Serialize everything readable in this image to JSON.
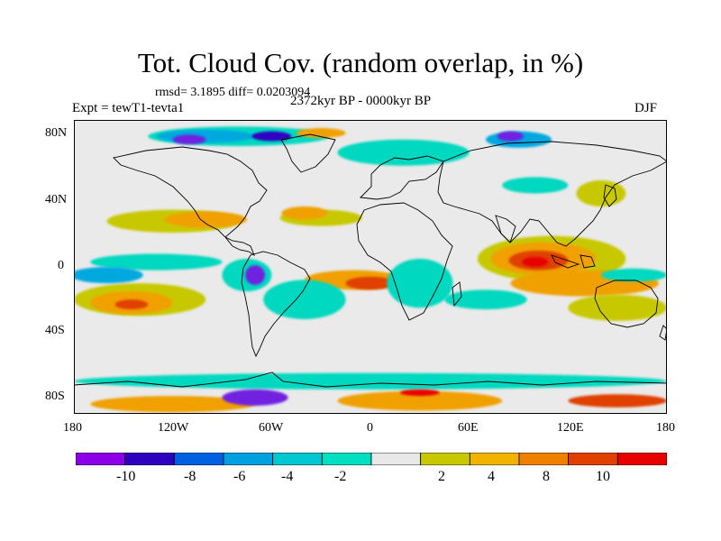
{
  "title": "Tot. Cloud Cov. (random overlap, in %)",
  "stats": "rmsd= 3.1895 diff= 0.0203094",
  "experiment": "Expt = tewT1-tevta1",
  "period": "2372kyr BP - 0000kyr BP",
  "season": "DJF",
  "map": {
    "projection": "cylindrical-equidistant",
    "lon_range": [
      -180,
      180
    ],
    "lat_range": [
      -90,
      90
    ],
    "y_ticks": [
      {
        "label": "80N",
        "value": 80
      },
      {
        "label": "40N",
        "value": 40
      },
      {
        "label": "0",
        "value": 0
      },
      {
        "label": "40S",
        "value": -40
      },
      {
        "label": "80S",
        "value": -80
      }
    ],
    "x_ticks": [
      {
        "label": "180",
        "value": -180
      },
      {
        "label": "120W",
        "value": -120
      },
      {
        "label": "60W",
        "value": -60
      },
      {
        "label": "0",
        "value": 0
      },
      {
        "label": "60E",
        "value": 60
      },
      {
        "label": "120E",
        "value": 120
      },
      {
        "label": "180",
        "value": 180
      }
    ],
    "background_color": "#eaeaea",
    "coastline_color": "#000000",
    "anomaly_regions": [
      {
        "lon": -120,
        "lat": 28,
        "rx": 40,
        "ry": 7,
        "color": "#c8c800"
      },
      {
        "lon": -100,
        "lat": 29,
        "rx": 25,
        "ry": 5,
        "color": "#f0a000"
      },
      {
        "lon": -30,
        "lat": 30,
        "rx": 25,
        "ry": 5,
        "color": "#c8c800"
      },
      {
        "lon": -40,
        "lat": 33,
        "rx": 14,
        "ry": 4,
        "color": "#f0a000"
      },
      {
        "lon": 110,
        "lat": 5,
        "rx": 45,
        "ry": 14,
        "color": "#c8c800"
      },
      {
        "lon": 105,
        "lat": 5,
        "rx": 32,
        "ry": 10,
        "color": "#f0a000"
      },
      {
        "lon": 102,
        "lat": 4,
        "rx": 18,
        "ry": 6,
        "color": "#e04000"
      },
      {
        "lon": 100,
        "lat": 3,
        "rx": 8,
        "ry": 3,
        "color": "#e80000"
      },
      {
        "lon": 130,
        "lat": -10,
        "rx": 45,
        "ry": 8,
        "color": "#f0a000"
      },
      {
        "lon": 150,
        "lat": -25,
        "rx": 30,
        "ry": 8,
        "color": "#c8c800"
      },
      {
        "lon": -140,
        "lat": -20,
        "rx": 40,
        "ry": 10,
        "color": "#c8c800"
      },
      {
        "lon": -145,
        "lat": -22,
        "rx": 25,
        "ry": 7,
        "color": "#f0a000"
      },
      {
        "lon": -145,
        "lat": -23,
        "rx": 10,
        "ry": 3,
        "color": "#e04000"
      },
      {
        "lon": -10,
        "lat": -8,
        "rx": 30,
        "ry": 6,
        "color": "#f0a000"
      },
      {
        "lon": 0,
        "lat": -10,
        "rx": 15,
        "ry": 4,
        "color": "#e04000"
      },
      {
        "lon": -130,
        "lat": 3,
        "rx": 40,
        "ry": 5,
        "color": "#00d8c0"
      },
      {
        "lon": -160,
        "lat": -5,
        "rx": 22,
        "ry": 5,
        "color": "#00a8e0"
      },
      {
        "lon": -75,
        "lat": -5,
        "rx": 15,
        "ry": 10,
        "color": "#00d8c0"
      },
      {
        "lon": -70,
        "lat": -5,
        "rx": 6,
        "ry": 6,
        "color": "#7020e0"
      },
      {
        "lon": -40,
        "lat": -20,
        "rx": 25,
        "ry": 12,
        "color": "#00d8c0"
      },
      {
        "lon": 30,
        "lat": -10,
        "rx": 20,
        "ry": 15,
        "color": "#00d8c0"
      },
      {
        "lon": 70,
        "lat": -20,
        "rx": 25,
        "ry": 6,
        "color": "#00d8c0"
      },
      {
        "lon": 160,
        "lat": -5,
        "rx": 20,
        "ry": 4,
        "color": "#00d8c0"
      },
      {
        "lon": 100,
        "lat": 50,
        "rx": 20,
        "ry": 5,
        "color": "#00d8c0"
      },
      {
        "lon": 20,
        "lat": 70,
        "rx": 40,
        "ry": 8,
        "color": "#00d8c0"
      },
      {
        "lon": -80,
        "lat": 80,
        "rx": 55,
        "ry": 6,
        "color": "#00d8c0"
      },
      {
        "lon": -100,
        "lat": 80,
        "rx": 30,
        "ry": 4,
        "color": "#00a8e0"
      },
      {
        "lon": -110,
        "lat": 78,
        "rx": 10,
        "ry": 3,
        "color": "#7020e0"
      },
      {
        "lon": -60,
        "lat": 80,
        "rx": 12,
        "ry": 3,
        "color": "#3000c0"
      },
      {
        "lon": 90,
        "lat": 78,
        "rx": 20,
        "ry": 5,
        "color": "#00a8e0"
      },
      {
        "lon": 85,
        "lat": 80,
        "rx": 8,
        "ry": 3,
        "color": "#7020e0"
      },
      {
        "lon": -30,
        "lat": 82,
        "rx": 15,
        "ry": 3,
        "color": "#f0a000"
      },
      {
        "lon": 140,
        "lat": 45,
        "rx": 15,
        "ry": 8,
        "color": "#c8c800"
      },
      {
        "lon": 0,
        "lat": -70,
        "rx": 180,
        "ry": 5,
        "color": "#00d8c0"
      },
      {
        "lon": -120,
        "lat": -84,
        "rx": 50,
        "ry": 5,
        "color": "#f0a000"
      },
      {
        "lon": 30,
        "lat": -82,
        "rx": 50,
        "ry": 6,
        "color": "#f0a000"
      },
      {
        "lon": -70,
        "lat": -80,
        "rx": 20,
        "ry": 5,
        "color": "#7020e0"
      },
      {
        "lon": 150,
        "lat": -82,
        "rx": 30,
        "ry": 4,
        "color": "#e04000"
      },
      {
        "lon": 30,
        "lat": -77,
        "rx": 12,
        "ry": 2,
        "color": "#e80000"
      }
    ]
  },
  "colorbar": {
    "colors": [
      "#8b00e6",
      "#3000c0",
      "#0060e0",
      "#00a0e0",
      "#00c8d0",
      "#00e0c0",
      "#e8e8e8",
      "#c8c800",
      "#f0b400",
      "#f08000",
      "#e04000",
      "#e80000"
    ],
    "labels": [
      "-10",
      "-8",
      "-6",
      "-4",
      "-2",
      "2",
      "4",
      "8",
      "10"
    ]
  }
}
